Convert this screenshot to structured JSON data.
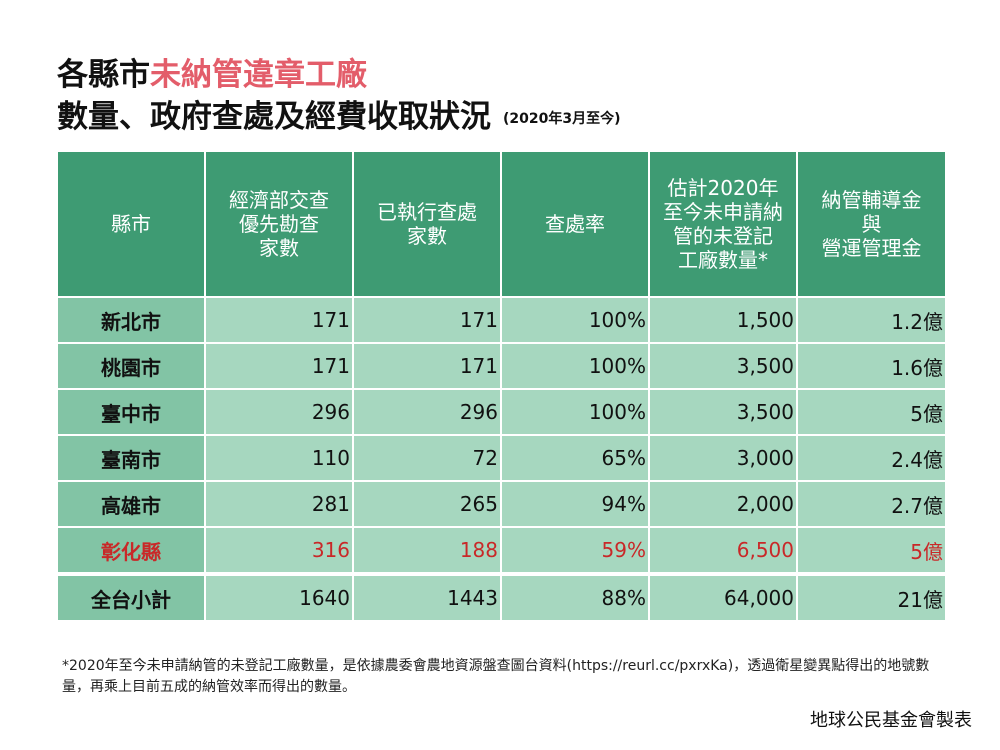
{
  "title": {
    "line1_prefix": "各縣市",
    "line1_accent": "未納管違章工廠",
    "line2": "數量、政府查處及經費收取狀況",
    "note": "(2020年3月至今)"
  },
  "table": {
    "headers": [
      [
        "縣市"
      ],
      [
        "經濟部交查",
        "優先勘查",
        "家數"
      ],
      [
        "已執行查處",
        "家數"
      ],
      [
        "查處率"
      ],
      [
        "估計2020年",
        "至今未申請納",
        "管的未登記",
        "工廠數量*"
      ],
      [
        "納管輔導金",
        "與",
        "營運管理金"
      ]
    ],
    "rows": [
      [
        "新北市",
        "171",
        "171",
        "100%",
        "1,500",
        "1.2億"
      ],
      [
        "桃園市",
        "171",
        "171",
        "100%",
        "3,500",
        "1.6億"
      ],
      [
        "臺中市",
        "296",
        "296",
        "100%",
        "3,500",
        "5億"
      ],
      [
        "臺南市",
        "110",
        "72",
        "65%",
        "3,000",
        "2.4億"
      ],
      [
        "高雄市",
        "281",
        "265",
        "94%",
        "2,000",
        "2.7億"
      ],
      [
        "彰化縣",
        "316",
        "188",
        "59%",
        "6,500",
        "5億"
      ],
      [
        "全台小計",
        "1640",
        "1443",
        "88%",
        "64,000",
        "21億"
      ]
    ]
  },
  "footnote": "*2020年至今未申請納管的未登記工廠數量，是依據農委會農地資源盤查圖台資料(https://reurl.cc/pxrxKa)，透過衛星變異點得出的地號數量，再乘上目前五成的納管效率而得出的數量。",
  "credit": "地球公民基金會製表",
  "colors": {
    "header_bg": "#3e9b73",
    "city_bg": "#82c4a5",
    "cell_bg": "#a6d7bf",
    "accent_title": "#e35d6a",
    "highlight_text": "#c92828"
  }
}
